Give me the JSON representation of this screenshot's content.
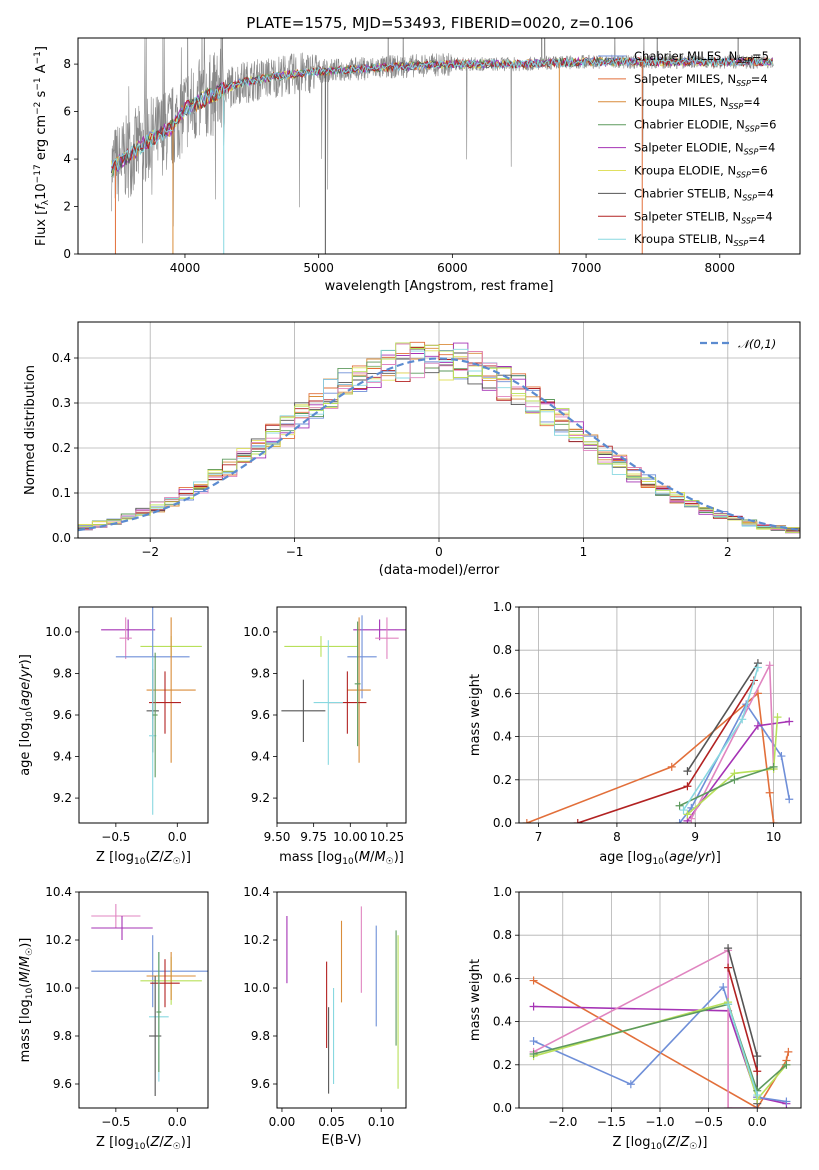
{
  "page_title": "PLATE=1575, MJD=53493, FIBERID=0020, z=0.106",
  "colors": {
    "c0": "#6f8fd8",
    "c1": "#e26f3a",
    "c2": "#d98c3a",
    "c3": "#5d9a5d",
    "c4": "#a533b5",
    "c5": "#e0e060",
    "c6": "#555555",
    "c7": "#b22222",
    "c8": "#88d8e0",
    "pink": "#e085c0",
    "lime": "#b8e05a",
    "gray": "#888888"
  },
  "chart_data": [
    {
      "id": "spectrum",
      "type": "line",
      "xlabel": "wavelength [Angstrom, rest frame]",
      "ylabel": "Flux [f_λ10^-17 erg cm^-2 s^-1 A^-1]",
      "xlim": [
        3200,
        8600
      ],
      "ylim": [
        0,
        9.1
      ],
      "xticks": [
        4000,
        5000,
        6000,
        7000,
        8000
      ],
      "yticks": [
        0,
        2,
        4,
        6,
        8
      ],
      "data_range": [
        3450,
        8400
      ],
      "continuum": {
        "x": [
          3450,
          3550,
          3700,
          3900,
          4000,
          4200,
          4400,
          4700,
          5000,
          5300,
          5600,
          6000,
          6500,
          7000,
          7500,
          8000,
          8400
        ],
        "y": [
          3.6,
          4.0,
          4.7,
          5.3,
          6.1,
          6.7,
          7.2,
          7.5,
          7.7,
          7.8,
          7.9,
          8.0,
          8.0,
          8.1,
          8.1,
          8.1,
          8.1
        ]
      },
      "legend": [
        {
          "label": "Chabrier MILES, N_SSP=5",
          "color_key": "c0"
        },
        {
          "label": "Salpeter MILES, N_SSP=4",
          "color_key": "c1"
        },
        {
          "label": "Kroupa MILES, N_SSP=4",
          "color_key": "c2"
        },
        {
          "label": "Chabrier ELODIE, N_SSP=6",
          "color_key": "c3"
        },
        {
          "label": "Salpeter ELODIE, N_SSP=4",
          "color_key": "c4"
        },
        {
          "label": "Kroupa ELODIE, N_SSP=6",
          "color_key": "c5"
        },
        {
          "label": "Chabrier STELIB, N_SSP=4",
          "color_key": "c6"
        },
        {
          "label": "Salpeter STELIB, N_SSP=4",
          "color_key": "c7"
        },
        {
          "label": "Kroupa STELIB, N_SSP=4",
          "color_key": "c8"
        }
      ]
    },
    {
      "id": "residual-hist",
      "type": "line",
      "xlabel": "(data-model)/error",
      "ylabel": "Normed distribution",
      "xlim": [
        -2.5,
        2.5
      ],
      "ylim": [
        0,
        0.48
      ],
      "xticks": [
        -2,
        -1,
        0,
        1,
        2
      ],
      "yticks": [
        0.0,
        0.1,
        0.2,
        0.3,
        0.4
      ],
      "grid": true,
      "legend_label": "𝒩(0,1)",
      "bin_width": 0.1,
      "colors": [
        "c0",
        "c1",
        "c2",
        "c3",
        "c4",
        "c5",
        "c6",
        "c7",
        "c8",
        "pink",
        "lime"
      ]
    },
    {
      "id": "age-vs-Z",
      "type": "scatter",
      "xlabel": "Z [log10(Z/Z☉)]",
      "ylabel": "age [log10(age/yr)]",
      "xlim": [
        -0.8,
        0.25
      ],
      "ylim": [
        9.08,
        10.12
      ],
      "xticks": [
        -0.5,
        0.0
      ],
      "yticks": [
        9.2,
        9.4,
        9.6,
        9.8,
        10.0
      ],
      "points": [
        {
          "x": -0.4,
          "xerr": 0.22,
          "y": 10.01,
          "yerr": 0.05,
          "c": "c4"
        },
        {
          "x": -0.42,
          "xerr": 0.05,
          "y": 9.97,
          "yerr": 0.1,
          "c": "pink"
        },
        {
          "x": -0.05,
          "xerr": 0.25,
          "y": 9.93,
          "yerr": 0.05,
          "c": "lime"
        },
        {
          "x": -0.2,
          "xerr": 0.3,
          "y": 9.88,
          "yerr": 0.3,
          "c": "c0"
        },
        {
          "x": -0.05,
          "xerr": 0.2,
          "y": 9.72,
          "yerr": 0.35,
          "c": "c2"
        },
        {
          "x": -0.1,
          "xerr": 0.13,
          "y": 9.66,
          "yerr": 0.15,
          "c": "c7"
        },
        {
          "x": -0.2,
          "xerr": 0.05,
          "y": 9.62,
          "yerr": 0.2,
          "c": "c6"
        },
        {
          "x": -0.2,
          "xerr": 0.03,
          "y": 9.5,
          "yerr": 0.38,
          "c": "c8"
        },
        {
          "x": -0.18,
          "xerr": 0.02,
          "y": 9.6,
          "yerr": 0.3,
          "c": "c3"
        }
      ]
    },
    {
      "id": "age-vs-mass",
      "type": "scatter",
      "xlabel": "mass [log10(M/M☉)]",
      "ylabel": "",
      "xlim": [
        9.5,
        10.38
      ],
      "ylim": [
        9.08,
        10.12
      ],
      "xticks": [
        9.5,
        9.75,
        10.0,
        10.25
      ],
      "yticks": [
        9.2,
        9.4,
        9.6,
        9.8,
        10.0
      ],
      "points": [
        {
          "x": 10.2,
          "xerr": 0.18,
          "y": 10.01,
          "yerr": 0.05,
          "c": "c4"
        },
        {
          "x": 10.25,
          "xerr": 0.08,
          "y": 9.97,
          "yerr": 0.1,
          "c": "pink"
        },
        {
          "x": 9.8,
          "xerr": 0.25,
          "y": 9.93,
          "yerr": 0.05,
          "c": "lime"
        },
        {
          "x": 10.08,
          "xerr": 0.1,
          "y": 9.88,
          "yerr": 0.2,
          "c": "c0"
        },
        {
          "x": 10.06,
          "xerr": 0.08,
          "y": 9.72,
          "yerr": 0.35,
          "c": "c2"
        },
        {
          "x": 9.98,
          "xerr": 0.13,
          "y": 9.66,
          "yerr": 0.15,
          "c": "c7"
        },
        {
          "x": 9.68,
          "xerr": 0.15,
          "y": 9.62,
          "yerr": 0.15,
          "c": "c6"
        },
        {
          "x": 9.85,
          "xerr": 0.1,
          "y": 9.66,
          "yerr": 0.3,
          "c": "c8"
        },
        {
          "x": 10.05,
          "xerr": 0.02,
          "y": 9.75,
          "yerr": 0.3,
          "c": "c3"
        }
      ]
    },
    {
      "id": "massweight-vs-age",
      "type": "line",
      "xlabel": "age [log10(age/yr)]",
      "ylabel": "mass weight",
      "xlim": [
        6.75,
        10.35
      ],
      "ylim": [
        0,
        1.0
      ],
      "xticks": [
        7,
        8,
        9,
        10
      ],
      "yticks": [
        0.0,
        0.2,
        0.4,
        0.6,
        0.8,
        1.0
      ],
      "grid": true,
      "series": [
        {
          "c": "c1",
          "x": [
            6.85,
            8.7,
            9.8,
            9.95,
            10.0
          ],
          "y": [
            0.0,
            0.26,
            0.6,
            0.14,
            0.0
          ]
        },
        {
          "c": "c0",
          "x": [
            8.8,
            8.95,
            9.65,
            10.1,
            10.2
          ],
          "y": [
            0.0,
            0.07,
            0.55,
            0.31,
            0.11
          ]
        },
        {
          "c": "c6",
          "x": [
            8.9,
            9.8
          ],
          "y": [
            0.24,
            0.74
          ]
        },
        {
          "c": "c7",
          "x": [
            7.5,
            8.9,
            9.75
          ],
          "y": [
            0.0,
            0.17,
            0.66
          ]
        },
        {
          "c": "c4",
          "x": [
            8.9,
            9.8,
            10.2
          ],
          "y": [
            0.01,
            0.45,
            0.47
          ]
        },
        {
          "c": "pink",
          "x": [
            8.95,
            9.95,
            10.0
          ],
          "y": [
            0.02,
            0.73,
            0.25
          ]
        },
        {
          "c": "lime",
          "x": [
            8.9,
            9.5,
            10.0,
            10.05
          ],
          "y": [
            0.04,
            0.23,
            0.25,
            0.49
          ]
        },
        {
          "c": "c3",
          "x": [
            8.8,
            9.5,
            10.0
          ],
          "y": [
            0.08,
            0.2,
            0.26
          ]
        },
        {
          "c": "c8",
          "x": [
            8.85,
            9.6,
            9.8
          ],
          "y": [
            0.06,
            0.48,
            0.72
          ]
        }
      ]
    },
    {
      "id": "mass-vs-Z",
      "type": "scatter",
      "xlabel": "Z [log10(Z/Z☉)]",
      "ylabel": "mass [log10(M/M☉)]",
      "xlim": [
        -0.8,
        0.25
      ],
      "ylim": [
        9.5,
        10.4
      ],
      "xticks": [
        -0.5,
        0.0
      ],
      "yticks": [
        9.6,
        9.8,
        10.0,
        10.2,
        10.4
      ],
      "points": [
        {
          "x": -0.5,
          "xerr": 0.2,
          "y": 10.3,
          "yerr": 0.05,
          "c": "pink"
        },
        {
          "x": -0.45,
          "xerr": 0.25,
          "y": 10.25,
          "yerr": 0.05,
          "c": "c4"
        },
        {
          "x": -0.2,
          "xerr": 0.5,
          "y": 10.07,
          "yerr": 0.15,
          "c": "c0"
        },
        {
          "x": -0.05,
          "xerr": 0.25,
          "y": 10.03,
          "yerr": 0.1,
          "c": "lime"
        },
        {
          "x": -0.05,
          "xerr": 0.2,
          "y": 10.05,
          "yerr": 0.1,
          "c": "c2"
        },
        {
          "x": -0.1,
          "xerr": 0.12,
          "y": 10.02,
          "yerr": 0.1,
          "c": "c7"
        },
        {
          "x": -0.15,
          "xerr": 0.08,
          "y": 9.88,
          "yerr": 0.27,
          "c": "c8"
        },
        {
          "x": -0.18,
          "xerr": 0.05,
          "y": 9.8,
          "yerr": 0.25,
          "c": "c6"
        },
        {
          "x": -0.15,
          "xerr": 0.02,
          "y": 9.9,
          "yerr": 0.25,
          "c": "c3"
        }
      ]
    },
    {
      "id": "mass-vs-ebv",
      "type": "scatter",
      "xlabel": "E(B-V)",
      "ylabel": "",
      "xlim": [
        -0.005,
        0.125
      ],
      "ylim": [
        9.5,
        10.4
      ],
      "xticks": [
        0.0,
        0.05,
        0.1
      ],
      "yticks": [
        9.6,
        9.8,
        10.0,
        10.2,
        10.4
      ],
      "points": [
        {
          "x": 0.005,
          "y": 10.16,
          "yerr": 0.14,
          "c": "c4"
        },
        {
          "x": 0.045,
          "y": 9.93,
          "yerr": 0.18,
          "c": "c7"
        },
        {
          "x": 0.047,
          "y": 9.74,
          "yerr": 0.18,
          "c": "c6"
        },
        {
          "x": 0.052,
          "y": 9.8,
          "yerr": 0.2,
          "c": "c8"
        },
        {
          "x": 0.06,
          "y": 10.11,
          "yerr": 0.17,
          "c": "c2"
        },
        {
          "x": 0.08,
          "y": 10.16,
          "yerr": 0.18,
          "c": "pink"
        },
        {
          "x": 0.095,
          "y": 10.05,
          "yerr": 0.21,
          "c": "c0"
        },
        {
          "x": 0.115,
          "y": 10.0,
          "yerr": 0.24,
          "c": "c3"
        },
        {
          "x": 0.117,
          "y": 9.9,
          "yerr": 0.32,
          "c": "lime"
        }
      ]
    },
    {
      "id": "massweight-vs-Z",
      "type": "line",
      "xlabel": "Z [log10(Z/Z☉)]",
      "ylabel": "mass weight",
      "xlim": [
        -2.45,
        0.45
      ],
      "ylim": [
        0,
        1.0
      ],
      "xticks": [
        -2.0,
        -1.5,
        -1.0,
        -0.5,
        0.0
      ],
      "yticks": [
        0.0,
        0.2,
        0.4,
        0.6,
        0.8,
        1.0
      ],
      "grid": true,
      "series": [
        {
          "c": "c1",
          "x": [
            -2.3,
            0.0,
            0.3,
            0.32
          ],
          "y": [
            0.59,
            0.0,
            0.22,
            0.26
          ]
        },
        {
          "c": "c4",
          "x": [
            -2.3,
            -0.3,
            0.0,
            0.3
          ],
          "y": [
            0.47,
            0.45,
            0.05,
            0.02
          ]
        },
        {
          "c": "c0",
          "x": [
            -2.3,
            -1.3,
            -0.35,
            0.0,
            0.3
          ],
          "y": [
            0.31,
            0.11,
            0.56,
            0.05,
            0.03
          ]
        },
        {
          "c": "pink",
          "x": [
            -2.3,
            -0.3,
            -0.3,
            0.0
          ],
          "y": [
            0.26,
            0.73,
            0.0,
            0.0
          ]
        },
        {
          "c": "c6",
          "x": [
            -0.3,
            0.0,
            0.0
          ],
          "y": [
            0.74,
            0.24,
            0.02
          ]
        },
        {
          "c": "c7",
          "x": [
            -0.3,
            0.0
          ],
          "y": [
            0.65,
            0.17
          ]
        },
        {
          "c": "lime",
          "x": [
            -2.3,
            -0.3,
            0.0,
            0.3
          ],
          "y": [
            0.24,
            0.49,
            0.04,
            0.2
          ]
        },
        {
          "c": "c3",
          "x": [
            -2.3,
            -0.3,
            0.0,
            0.3
          ],
          "y": [
            0.25,
            0.48,
            0.08,
            0.2
          ]
        },
        {
          "c": "c8",
          "x": [
            -0.3,
            0.0
          ],
          "y": [
            0.48,
            0.06
          ]
        }
      ]
    }
  ]
}
